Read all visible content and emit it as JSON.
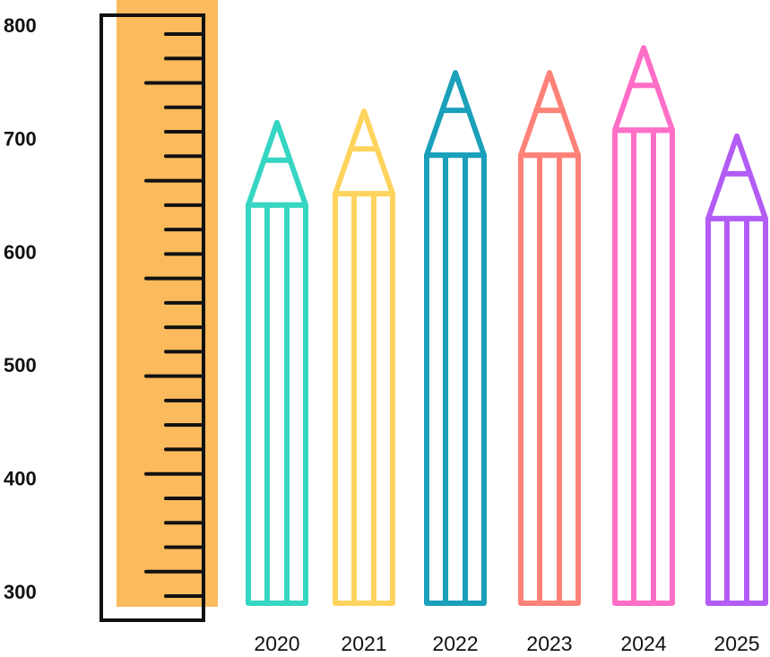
{
  "chart_data": {
    "type": "bar",
    "categories": [
      "2020",
      "2021",
      "2022",
      "2023",
      "2024",
      "2025"
    ],
    "series": [
      {
        "values": [
          714,
          724,
          758,
          758,
          780,
          702
        ]
      }
    ],
    "yticks": [
      "300",
      "400",
      "500",
      "600",
      "700",
      "800"
    ],
    "ylim": [
      300,
      800
    ],
    "colors": [
      "#36D6C3",
      "#FFD45E",
      "#1AA0BA",
      "#FF8278",
      "#FF6EC7",
      "#B35CF5"
    ],
    "ruler_color": "#FBBA5B",
    "grid": false,
    "legend": "none",
    "title": "",
    "xlabel": "",
    "ylabel": ""
  }
}
